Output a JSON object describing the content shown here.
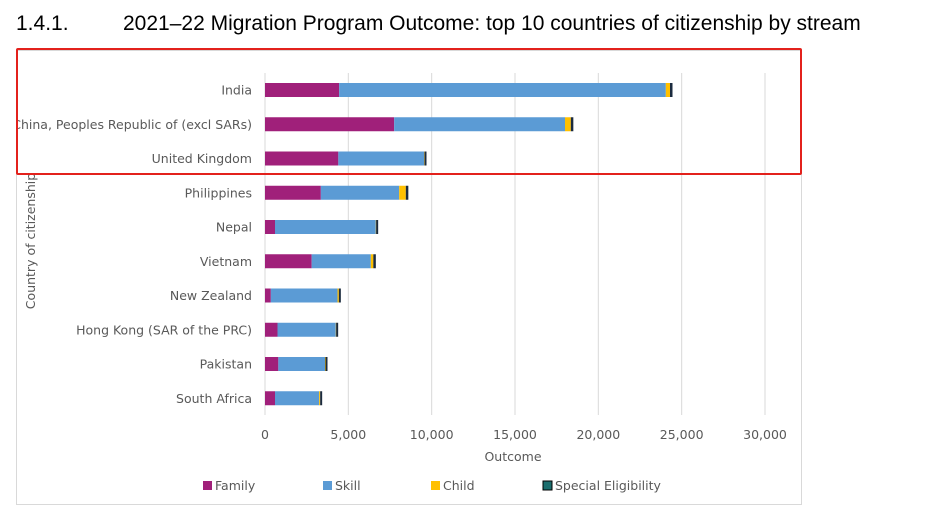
{
  "heading": {
    "number": "1.4.1.",
    "title": "2021–22 Migration Program Outcome: top 10 countries of citizenship by stream"
  },
  "colors": {
    "Family": "#a0207a",
    "Skill": "#5b9bd5",
    "Child": "#ffc000",
    "Special Eligibility": "#1f4e79",
    "grid": "#d9d9d9",
    "text": "#595959",
    "highlight": "#e3211c"
  },
  "chart_data": {
    "type": "bar",
    "orientation": "horizontal",
    "stacked": true,
    "categories": [
      "India",
      "China, Peoples Republic of (excl SARs)",
      "United Kingdom",
      "Philippines",
      "Nepal",
      "Vietnam",
      "New Zealand",
      "Hong Kong (SAR of the PRC)",
      "Pakistan",
      "South Africa"
    ],
    "series": [
      {
        "name": "Family",
        "values": [
          4450,
          7750,
          4400,
          3350,
          600,
          2800,
          350,
          750,
          800,
          600
        ]
      },
      {
        "name": "Skill",
        "values": [
          19600,
          10250,
          5150,
          4700,
          6050,
          3550,
          4000,
          3500,
          2800,
          2650
        ]
      },
      {
        "name": "Child",
        "values": [
          250,
          350,
          20,
          400,
          20,
          150,
          80,
          20,
          30,
          60
        ]
      },
      {
        "name": "Special Eligibility",
        "values": [
          150,
          150,
          100,
          150,
          100,
          150,
          20,
          120,
          120,
          20
        ]
      }
    ],
    "xlabel": "Outcome",
    "ylabel": "Country of citizenship",
    "xlim": [
      0,
      30000
    ],
    "xticks": [
      "0",
      "5,000",
      "10,000",
      "15,000",
      "20,000",
      "25,000",
      "30,000"
    ],
    "xtick_values": [
      0,
      5000,
      10000,
      15000,
      20000,
      25000,
      30000
    ],
    "grid": "vertical",
    "legend_position": "bottom"
  }
}
